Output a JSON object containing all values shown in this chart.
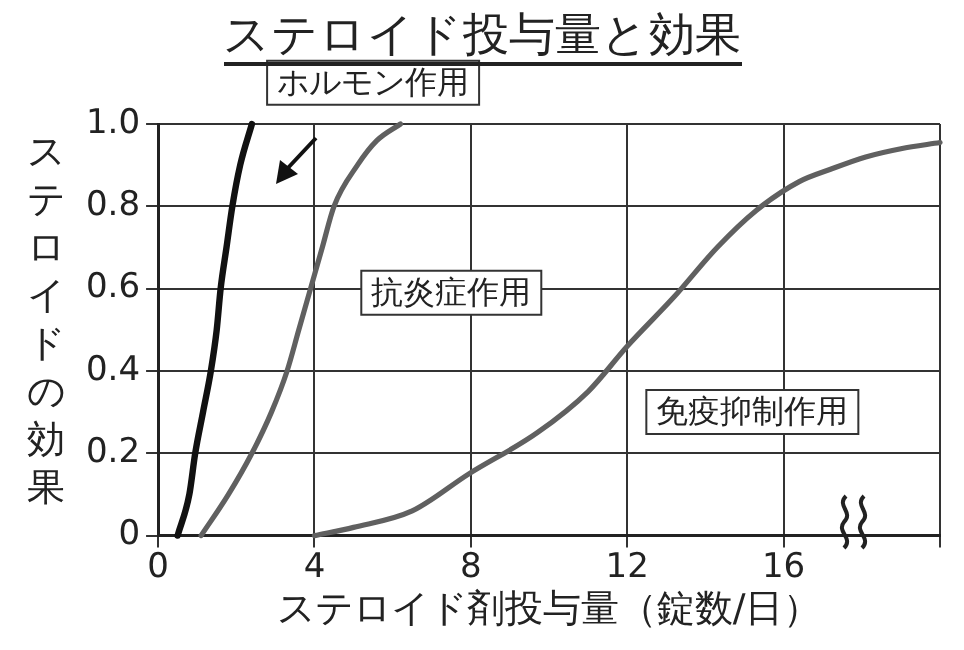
{
  "chart_data": {
    "type": "line",
    "title": "ステロイド投与量と効果",
    "xlabel": "ステロイド剤投与量（錠数/日）",
    "ylabel": "ステロイドの効果",
    "xlim": [
      0,
      20
    ],
    "xticks": [
      0,
      4,
      8,
      12,
      16,
      {
        "value": 20,
        "label": null
      }
    ],
    "ylim": [
      0,
      1
    ],
    "yticks": [
      0,
      0.2,
      0.4,
      0.6,
      0.8,
      {
        "value": 1,
        "label": "1.0"
      }
    ],
    "grid": true,
    "legend": false,
    "marker": "none",
    "line_style": "solid",
    "series": [
      {
        "name": "ホルモン作用",
        "color": "#111111",
        "x": [
          0.5,
          0.8,
          0.95,
          1.15,
          1.35,
          1.5,
          1.6,
          1.75,
          1.9,
          2.1,
          2.4
        ],
        "values": [
          0,
          0.1,
          0.2,
          0.3,
          0.4,
          0.5,
          0.6,
          0.7,
          0.8,
          0.9,
          1
        ]
      },
      {
        "name": "抗炎症作用",
        "color": "#606060",
        "x": [
          1.1,
          1.8,
          2.4,
          2.9,
          3.3,
          3.6,
          3.9,
          4.2,
          4.5,
          5.1,
          5.6,
          6.2
        ],
        "values": [
          0,
          0.1,
          0.2,
          0.3,
          0.4,
          0.5,
          0.6,
          0.7,
          0.8,
          0.9,
          0.96,
          1
        ]
      },
      {
        "name": "免疫抑制作用",
        "color": "#606060",
        "x": [
          4,
          5,
          6.5,
          7.95,
          9.7,
          11,
          12,
          13.2,
          14.3,
          15.3,
          16.4,
          17.2,
          18.1,
          19,
          20
        ],
        "values": [
          0,
          0.02,
          0.06,
          0.15,
          0.25,
          0.35,
          0.46,
          0.58,
          0.7,
          0.79,
          0.86,
          0.89,
          0.92,
          0.94,
          0.955
        ]
      }
    ]
  }
}
